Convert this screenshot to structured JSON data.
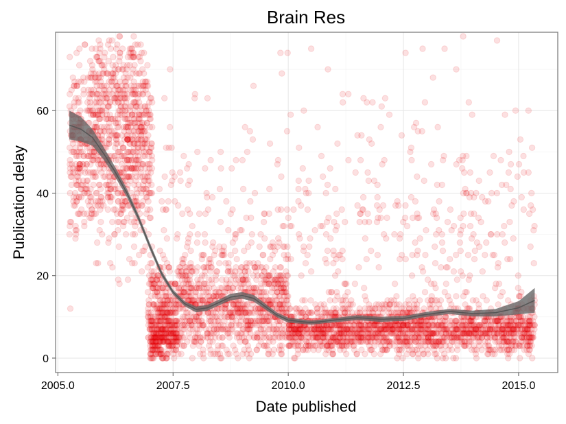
{
  "chart_data": {
    "type": "scatter",
    "title": "Brain Res",
    "xlabel": "Date published",
    "ylabel": "Publication delay",
    "xlim": [
      2004.95,
      2015.85
    ],
    "ylim": [
      -3.5,
      79
    ],
    "x_ticks": [
      2005.0,
      2007.5,
      2010.0,
      2012.5,
      2015.0
    ],
    "x_tick_labels": [
      "2005.0",
      "2007.5",
      "2010.0",
      "2012.5",
      "2015.0"
    ],
    "y_ticks": [
      0,
      20,
      40,
      60
    ],
    "y_tick_labels": [
      "0",
      "20",
      "40",
      "60"
    ],
    "grid": true,
    "point_color": "#e8000b",
    "point_opacity": 0.12,
    "smooth_color": "#555555",
    "clusters": [
      {
        "x_range": [
          2005.25,
          2007.05
        ],
        "y_center": 50,
        "y_spread": 11,
        "count": 900
      },
      {
        "x_range": [
          2005.7,
          2006.9
        ],
        "y_center": 66,
        "y_spread": 7,
        "count": 160
      },
      {
        "x_range": [
          2006.95,
          2010.0
        ],
        "y_center": 12,
        "y_spread": 6,
        "count": 1100
      },
      {
        "x_range": [
          2007.0,
          2007.6
        ],
        "y_center": 5,
        "y_spread": 2.5,
        "count": 220
      },
      {
        "x_range": [
          2010.0,
          2015.35
        ],
        "y_center": 7,
        "y_spread": 3,
        "count": 1700
      },
      {
        "x_range": [
          2007.2,
          2015.35
        ],
        "y_center": 28,
        "y_spread": 18,
        "count": 600
      }
    ],
    "smooth": {
      "x": [
        2005.25,
        2005.5,
        2005.75,
        2006.0,
        2006.25,
        2006.5,
        2006.75,
        2007.0,
        2007.25,
        2007.5,
        2007.75,
        2008.0,
        2008.25,
        2008.5,
        2008.75,
        2009.0,
        2009.25,
        2009.5,
        2009.75,
        2010.0,
        2010.5,
        2011.0,
        2011.5,
        2012.0,
        2012.5,
        2013.0,
        2013.5,
        2014.0,
        2014.5,
        2015.0,
        2015.35
      ],
      "y": [
        56.5,
        55.5,
        53.5,
        49.5,
        45.0,
        40.0,
        34.0,
        27.0,
        20.5,
        16.0,
        13.2,
        11.8,
        12.2,
        13.5,
        14.8,
        15.2,
        14.5,
        12.5,
        10.5,
        9.2,
        8.6,
        9.2,
        9.8,
        9.4,
        9.6,
        10.6,
        11.3,
        10.8,
        11.0,
        12.2,
        14.0
      ],
      "lower": [
        53.0,
        52.5,
        51.5,
        48.0,
        43.8,
        39.0,
        33.2,
        26.2,
        19.8,
        15.4,
        12.6,
        11.1,
        11.5,
        12.8,
        14.0,
        14.4,
        13.7,
        11.8,
        9.9,
        8.6,
        8.1,
        8.7,
        9.2,
        8.8,
        9.0,
        10.0,
        10.7,
        10.1,
        10.1,
        10.6,
        11.0
      ],
      "upper": [
        60.0,
        58.5,
        55.5,
        51.0,
        46.2,
        41.0,
        34.8,
        27.8,
        21.2,
        16.6,
        13.8,
        12.5,
        12.9,
        14.2,
        15.6,
        16.0,
        15.3,
        13.2,
        11.1,
        9.8,
        9.1,
        9.7,
        10.4,
        10.0,
        10.2,
        11.2,
        11.9,
        11.5,
        11.9,
        13.8,
        17.0
      ]
    }
  }
}
